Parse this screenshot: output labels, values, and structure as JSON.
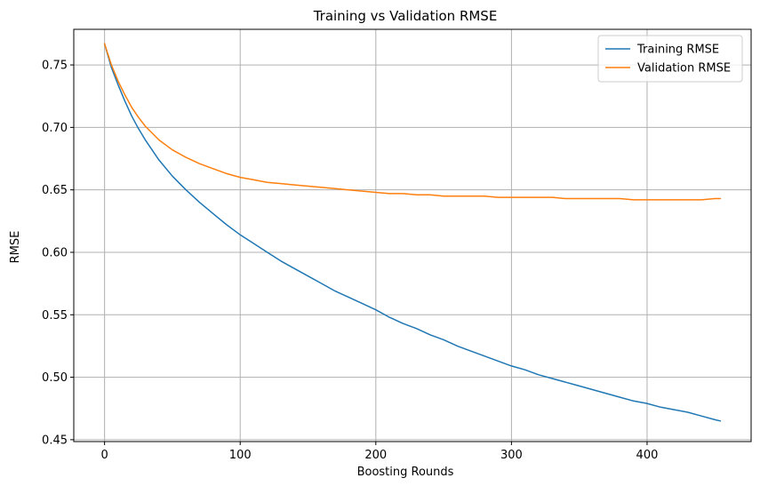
{
  "chart_data": {
    "type": "line",
    "title": "Training vs Validation RMSE",
    "xlabel": "Boosting Rounds",
    "ylabel": "RMSE",
    "xlim": [
      -22.7,
      476.7
    ],
    "ylim": [
      0.4485,
      0.7785
    ],
    "xticks": [
      0,
      100,
      200,
      300,
      400
    ],
    "yticks": [
      0.45,
      0.5,
      0.55,
      0.6,
      0.65,
      0.7,
      0.75
    ],
    "ytick_labels": [
      "0.45",
      "0.50",
      "0.55",
      "0.60",
      "0.65",
      "0.70",
      "0.75"
    ],
    "grid": true,
    "legend_position": "top-right",
    "series": [
      {
        "name": "Training RMSE",
        "color": "#1f77b4",
        "x": [
          0,
          5,
          10,
          15,
          20,
          25,
          30,
          40,
          50,
          60,
          70,
          80,
          90,
          100,
          110,
          120,
          130,
          140,
          150,
          160,
          170,
          180,
          190,
          200,
          210,
          220,
          230,
          240,
          250,
          260,
          270,
          280,
          290,
          300,
          310,
          320,
          330,
          340,
          350,
          360,
          370,
          380,
          390,
          400,
          410,
          420,
          430,
          440,
          450,
          454
        ],
        "y": [
          0.767,
          0.748,
          0.734,
          0.721,
          0.709,
          0.699,
          0.69,
          0.674,
          0.661,
          0.65,
          0.64,
          0.631,
          0.622,
          0.614,
          0.607,
          0.6,
          0.593,
          0.587,
          0.581,
          0.575,
          0.569,
          0.564,
          0.559,
          0.554,
          0.548,
          0.543,
          0.539,
          0.534,
          0.53,
          0.525,
          0.521,
          0.517,
          0.513,
          0.509,
          0.506,
          0.502,
          0.499,
          0.496,
          0.493,
          0.49,
          0.487,
          0.484,
          0.481,
          0.479,
          0.476,
          0.474,
          0.472,
          0.469,
          0.466,
          0.465
        ]
      },
      {
        "name": "Validation RMSE",
        "color": "#ff7f0e",
        "x": [
          0,
          5,
          10,
          15,
          20,
          25,
          30,
          40,
          50,
          60,
          70,
          80,
          90,
          100,
          110,
          120,
          130,
          140,
          150,
          160,
          170,
          180,
          190,
          200,
          210,
          220,
          230,
          240,
          250,
          260,
          270,
          280,
          290,
          300,
          310,
          320,
          330,
          340,
          350,
          360,
          370,
          380,
          390,
          400,
          410,
          420,
          430,
          440,
          450,
          454
        ],
        "y": [
          0.767,
          0.75,
          0.737,
          0.726,
          0.716,
          0.708,
          0.701,
          0.69,
          0.682,
          0.676,
          0.671,
          0.667,
          0.663,
          0.66,
          0.658,
          0.656,
          0.655,
          0.654,
          0.653,
          0.652,
          0.651,
          0.65,
          0.649,
          0.648,
          0.647,
          0.647,
          0.646,
          0.646,
          0.645,
          0.645,
          0.645,
          0.645,
          0.644,
          0.644,
          0.644,
          0.644,
          0.644,
          0.643,
          0.643,
          0.643,
          0.643,
          0.643,
          0.642,
          0.642,
          0.642,
          0.642,
          0.642,
          0.642,
          0.643,
          0.643
        ]
      }
    ]
  }
}
